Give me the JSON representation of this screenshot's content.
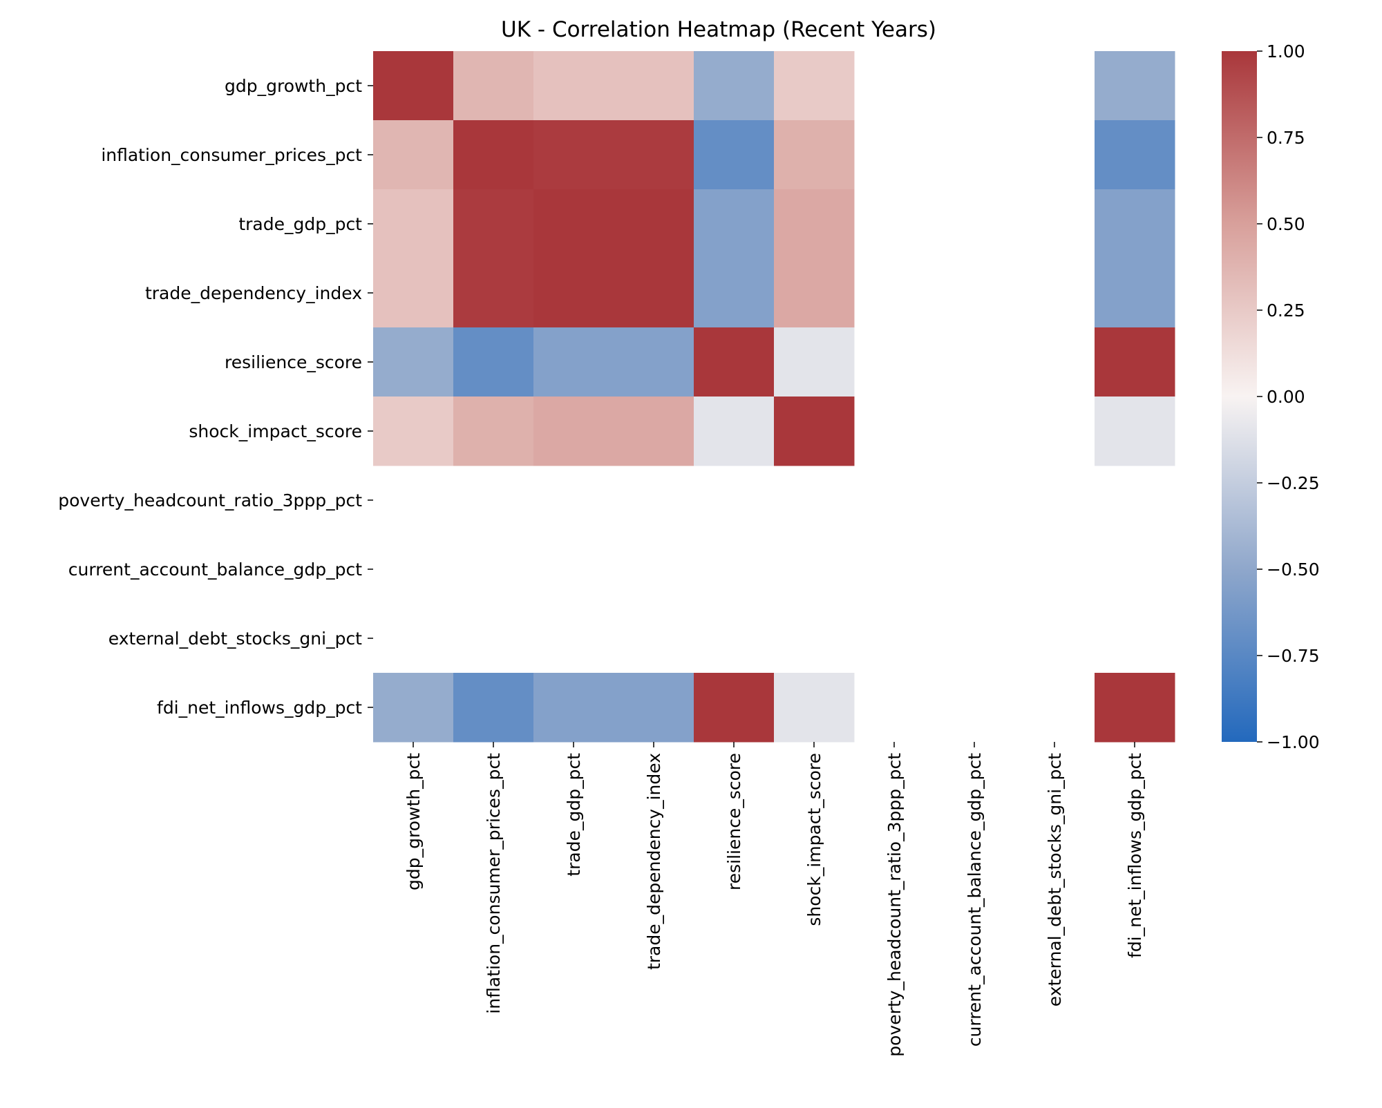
{
  "chart_data": {
    "type": "heatmap",
    "title": "UK - Correlation Heatmap (Recent Years)",
    "xlabel": "",
    "ylabel": "",
    "rows": [
      "gdp_growth_pct",
      "inflation_consumer_prices_pct",
      "trade_gdp_pct",
      "trade_dependency_index",
      "resilience_score",
      "shock_impact_score",
      "poverty_headcount_ratio_3ppp_pct",
      "current_account_balance_gdp_pct",
      "external_debt_stocks_gni_pct",
      "fdi_net_inflows_gdp_pct"
    ],
    "columns": [
      "gdp_growth_pct",
      "inflation_consumer_prices_pct",
      "trade_gdp_pct",
      "trade_dependency_index",
      "resilience_score",
      "shock_impact_score",
      "poverty_headcount_ratio_3ppp_pct",
      "current_account_balance_gdp_pct",
      "external_debt_stocks_gni_pct",
      "fdi_net_inflows_gdp_pct"
    ],
    "values": [
      [
        1.0,
        0.37,
        0.3,
        0.3,
        -0.47,
        0.25,
        null,
        null,
        null,
        -0.47
      ],
      [
        0.37,
        1.0,
        0.98,
        0.98,
        -0.7,
        0.4,
        null,
        null,
        null,
        -0.7
      ],
      [
        0.3,
        0.98,
        1.0,
        1.0,
        -0.55,
        0.45,
        null,
        null,
        null,
        -0.55
      ],
      [
        0.3,
        0.98,
        1.0,
        1.0,
        -0.55,
        0.45,
        null,
        null,
        null,
        -0.55
      ],
      [
        -0.47,
        -0.7,
        -0.55,
        -0.55,
        1.0,
        -0.1,
        null,
        null,
        null,
        1.0
      ],
      [
        0.25,
        0.4,
        0.45,
        0.45,
        -0.1,
        1.0,
        null,
        null,
        null,
        -0.1
      ],
      [
        null,
        null,
        null,
        null,
        null,
        null,
        null,
        null,
        null,
        null
      ],
      [
        null,
        null,
        null,
        null,
        null,
        null,
        null,
        null,
        null,
        null
      ],
      [
        null,
        null,
        null,
        null,
        null,
        null,
        null,
        null,
        null,
        null
      ],
      [
        -0.47,
        -0.7,
        -0.55,
        -0.55,
        1.0,
        -0.1,
        null,
        null,
        null,
        1.0
      ]
    ],
    "colorbar": {
      "min": -1.0,
      "max": 1.0,
      "ticks": [
        "1.00",
        "0.75",
        "0.50",
        "0.25",
        "0.00",
        "−0.25",
        "−0.50",
        "−0.75",
        "−1.00"
      ],
      "tick_values": [
        1.0,
        0.75,
        0.5,
        0.25,
        0.0,
        -0.25,
        -0.5,
        -0.75,
        -1.0
      ],
      "colormap": "vlag",
      "stops": [
        {
          "v": -1.0,
          "color": "#2369bd"
        },
        {
          "v": -0.5,
          "color": "#8fa7cb"
        },
        {
          "v": 0.0,
          "color": "#f8f3f2"
        },
        {
          "v": 0.5,
          "color": "#d8a09b"
        },
        {
          "v": 1.0,
          "color": "#a9373b"
        }
      ]
    },
    "grid": false,
    "legend": "colorbar-right"
  }
}
